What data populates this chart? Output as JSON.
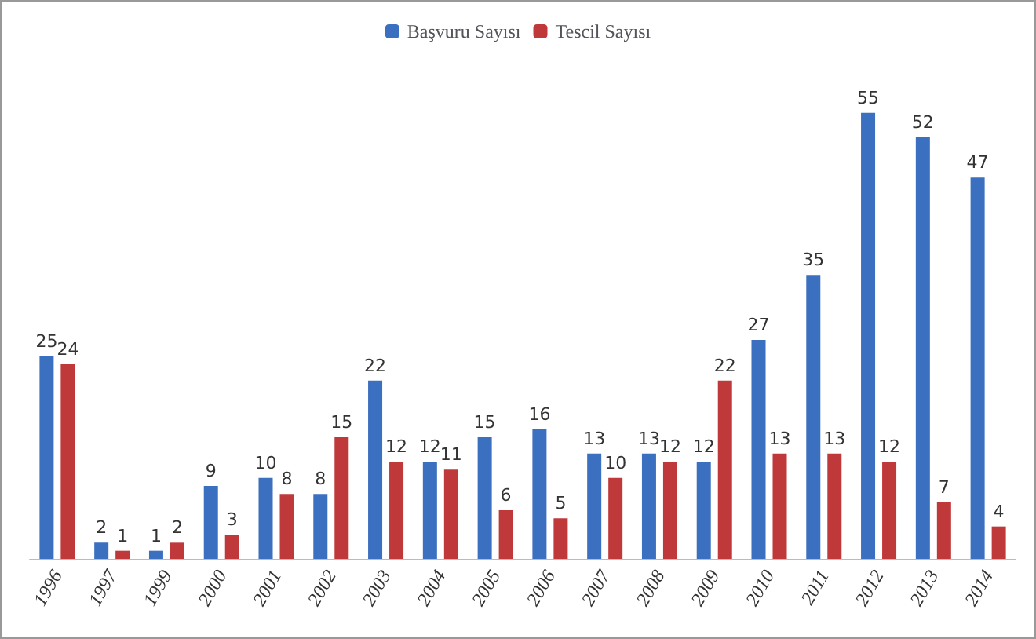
{
  "chart_data": {
    "type": "bar",
    "categories": [
      "1996",
      "1997",
      "1999",
      "2000",
      "2001",
      "2002",
      "2003",
      "2004",
      "2005",
      "2006",
      "2007",
      "2008",
      "2009",
      "2010",
      "2011",
      "2012",
      "2013",
      "2014"
    ],
    "series": [
      {
        "name": "Başvuru Sayısı",
        "color": "#3b6fc0",
        "values": [
          25,
          2,
          1,
          9,
          10,
          8,
          22,
          12,
          15,
          16,
          13,
          13,
          12,
          27,
          35,
          55,
          52,
          47
        ]
      },
      {
        "name": "Tescil Sayısı",
        "color": "#c0393a",
        "values": [
          24,
          1,
          2,
          3,
          8,
          15,
          12,
          11,
          6,
          5,
          10,
          12,
          22,
          13,
          13,
          12,
          7,
          4
        ]
      }
    ],
    "data_labels": true,
    "legend": "top"
  }
}
